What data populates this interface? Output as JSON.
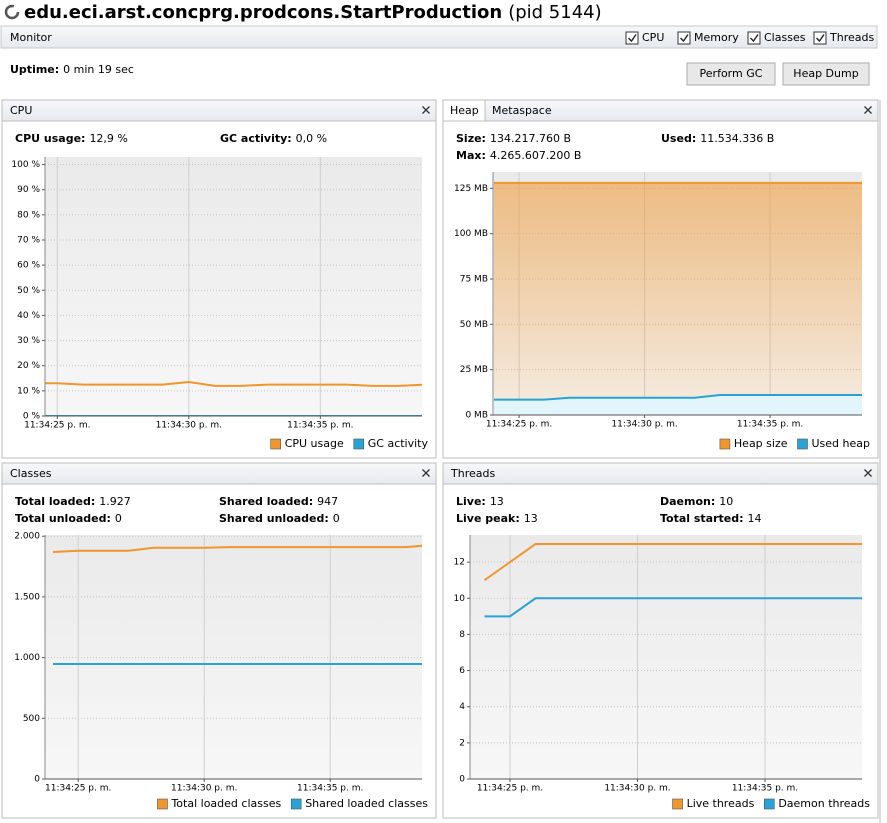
{
  "header": {
    "title": "edu.eci.arst.concprg.prodcons.StartProduction",
    "pid": "(pid 5144)"
  },
  "monitor": {
    "label": "Monitor",
    "checkboxes": [
      {
        "label": "CPU",
        "checked": true
      },
      {
        "label": "Memory",
        "checked": true
      },
      {
        "label": "Classes",
        "checked": true
      },
      {
        "label": "Threads",
        "checked": true
      }
    ],
    "uptime_label": "Uptime:",
    "uptime": "0 min 19 sec",
    "buttons": [
      "Perform GC",
      "Heap Dump"
    ]
  },
  "chart_data": [
    {
      "type": "line",
      "title": "CPU",
      "stats": [
        {
          "label": "CPU usage:",
          "value": "12,9 %"
        },
        {
          "label": "GC activity:",
          "value": "0,0 %"
        }
      ],
      "categories": [
        null,
        "11:34:25 p. m.",
        null,
        null,
        null,
        null,
        "11:34:30 p. m.",
        null,
        null,
        null,
        null,
        "11:34:35 p. m.",
        null,
        null,
        null,
        null
      ],
      "series": [
        {
          "name": "CPU usage",
          "color": "#ef962e",
          "values": [
            13,
            13,
            12.5,
            12.5,
            12.5,
            12.5,
            13.5,
            12,
            12,
            12.5,
            12.5,
            12.5,
            12.5,
            12,
            12,
            12.5
          ]
        },
        {
          "name": "GC activity",
          "color": "#2aa2d4",
          "values": [
            0,
            0,
            0,
            0,
            0,
            0,
            0,
            0,
            0,
            0,
            0,
            0,
            0,
            0,
            0,
            0
          ]
        }
      ],
      "ylim": [
        0,
        103
      ],
      "yticks": [
        {
          "value": 0,
          "label": "0 %"
        },
        {
          "value": 10,
          "label": "10 %"
        },
        {
          "value": 20,
          "label": "20 %"
        },
        {
          "value": 30,
          "label": "30 %"
        },
        {
          "value": 40,
          "label": "40 %"
        },
        {
          "value": 50,
          "label": "50 %"
        },
        {
          "value": 60,
          "label": "60 %"
        },
        {
          "value": 70,
          "label": "70 %"
        },
        {
          "value": 80,
          "label": "80 %"
        },
        {
          "value": 90,
          "label": "90 %"
        },
        {
          "value": 100,
          "label": "100 %"
        }
      ],
      "grid": true
    },
    {
      "type": "area",
      "tabs": [
        "Heap",
        "Metaspace"
      ],
      "stats": [
        {
          "label": "Size:",
          "value": "134.217.760 B"
        },
        {
          "label": "Used:",
          "value": "11.534.336 B"
        },
        {
          "label": "Max:",
          "value": "4.265.607.200 B"
        }
      ],
      "categories": [
        null,
        "11:34:25 p. m.",
        null,
        null,
        null,
        null,
        "11:34:30 p. m.",
        null,
        null,
        null,
        null,
        "11:34:35 p. m.",
        null,
        null,
        null,
        null
      ],
      "series": [
        {
          "name": "Heap size",
          "color": "#ef962e",
          "values": [
            128,
            128,
            128,
            128,
            128,
            128,
            128,
            128,
            128,
            128,
            128,
            128,
            128,
            128,
            128,
            128
          ]
        },
        {
          "name": "Used heap",
          "color": "#2aa2d4",
          "values": [
            8.5,
            8.5,
            8.5,
            9.5,
            9.5,
            9.5,
            9.5,
            9.5,
            9.5,
            11,
            11,
            11,
            11,
            11,
            11,
            11
          ]
        }
      ],
      "ylim": [
        0,
        134
      ],
      "yticks": [
        {
          "value": 0,
          "label": "0 MB"
        },
        {
          "value": 25,
          "label": "25 MB"
        },
        {
          "value": 50,
          "label": "50 MB"
        },
        {
          "value": 75,
          "label": "75 MB"
        },
        {
          "value": 100,
          "label": "100 MB"
        },
        {
          "value": 125,
          "label": "125 MB"
        }
      ],
      "grid": true
    },
    {
      "type": "line",
      "title": "Classes",
      "stats": [
        {
          "label": "Total loaded:",
          "value": "1.927"
        },
        {
          "label": "Shared loaded:",
          "value": "947"
        },
        {
          "label": "Total unloaded:",
          "value": "0"
        },
        {
          "label": "Shared unloaded:",
          "value": "0"
        }
      ],
      "categories": [
        null,
        "11:34:25 p. m.",
        null,
        null,
        null,
        null,
        "11:34:30 p. m.",
        null,
        null,
        null,
        null,
        "11:34:35 p. m.",
        null,
        null,
        null,
        null
      ],
      "series": [
        {
          "name": "Total loaded classes",
          "color": "#ef962e",
          "values": [
            1870,
            1880,
            1880,
            1880,
            1905,
            1905,
            1905,
            1910,
            1910,
            1910,
            1910,
            1910,
            1910,
            1910,
            1910,
            1927
          ]
        },
        {
          "name": "Shared loaded classes",
          "color": "#2aa2d4",
          "values": [
            947,
            947,
            947,
            947,
            947,
            947,
            947,
            947,
            947,
            947,
            947,
            947,
            947,
            947,
            947,
            947
          ]
        }
      ],
      "ylim": [
        0,
        2010
      ],
      "yticks": [
        0,
        500,
        {
          "value": 1000,
          "label": "1.000"
        },
        {
          "value": 1500,
          "label": "1.500"
        },
        {
          "value": 2000,
          "label": "2.000"
        }
      ],
      "grid": true
    },
    {
      "type": "line",
      "title": "Threads",
      "stats": [
        {
          "label": "Live:",
          "value": "13"
        },
        {
          "label": "Daemon:",
          "value": "10"
        },
        {
          "label": "Live peak:",
          "value": "13"
        },
        {
          "label": "Total started:",
          "value": "14"
        }
      ],
      "categories": [
        null,
        "11:34:25 p. m.",
        null,
        null,
        null,
        null,
        "11:34:30 p. m.",
        null,
        null,
        null,
        null,
        "11:34:35 p. m.",
        null,
        null,
        null,
        null
      ],
      "series": [
        {
          "name": "Live threads",
          "color": "#ef962e",
          "values": [
            11,
            12,
            13,
            13,
            13,
            13,
            13,
            13,
            13,
            13,
            13,
            13,
            13,
            13,
            13,
            13
          ]
        },
        {
          "name": "Daemon threads",
          "color": "#2aa2d4",
          "values": [
            9,
            9,
            10,
            10,
            10,
            10,
            10,
            10,
            10,
            10,
            10,
            10,
            10,
            10,
            10,
            10
          ]
        }
      ],
      "ylim": [
        0,
        13.5
      ],
      "yticks": [
        0,
        2,
        4,
        6,
        8,
        10,
        12
      ],
      "grid": true
    }
  ]
}
